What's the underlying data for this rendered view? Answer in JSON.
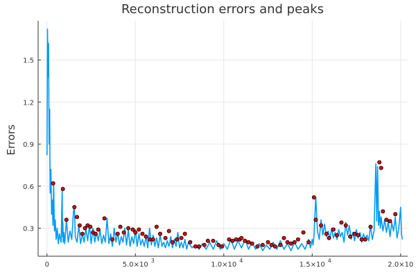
{
  "chart_data": {
    "type": "line",
    "title": "Reconstruction errors and peaks",
    "xlabel": "",
    "ylabel": "Errors",
    "xlim": [
      -500,
      20400
    ],
    "ylim": [
      0.1,
      1.78
    ],
    "grid": true,
    "legend": "none",
    "x_ticks": [
      {
        "value": 0,
        "mantissa": "0",
        "exponent": ""
      },
      {
        "value": 5000,
        "mantissa": "5.0×10",
        "exponent": "3"
      },
      {
        "value": 10000,
        "mantissa": "1.0×10",
        "exponent": "4"
      },
      {
        "value": 15000,
        "mantissa": "1.5×10",
        "exponent": "4"
      },
      {
        "value": 20000,
        "mantissa": "2.0×10",
        "exponent": "4"
      }
    ],
    "y_ticks": [
      "0.3",
      "0.6",
      "0.9",
      "1.2",
      "1.5"
    ],
    "series": [
      {
        "color": "#009af9",
        "x": [
          0,
          30,
          60,
          90,
          120,
          150,
          180,
          220,
          260,
          300,
          340,
          380,
          420,
          470,
          520,
          580,
          640,
          700,
          800,
          860,
          880,
          900,
          920,
          950,
          1000,
          1100,
          1200,
          1300,
          1400,
          1500,
          1550,
          1600,
          1700,
          1800,
          1900,
          2000,
          2100,
          2200,
          2300,
          2400,
          2500,
          2600,
          2700,
          2800,
          2900,
          3000,
          3100,
          3200,
          3300,
          3400,
          3500,
          3600,
          3700,
          3800,
          3900,
          4000,
          4100,
          4200,
          4300,
          4400,
          4500,
          4600,
          4700,
          4800,
          4900,
          5000,
          5100,
          5200,
          5300,
          5400,
          5500,
          5600,
          5700,
          5800,
          5900,
          6000,
          6100,
          6200,
          6300,
          6400,
          6500,
          6600,
          6700,
          6800,
          6900,
          7000,
          7100,
          7200,
          7300,
          7400,
          7500,
          7600,
          7700,
          7800,
          7900,
          8000,
          8200,
          8400,
          8600,
          8800,
          9000,
          9200,
          9400,
          9600,
          9800,
          10000,
          10200,
          10400,
          10600,
          10800,
          11000,
          11200,
          11400,
          11600,
          11800,
          12000,
          12200,
          12400,
          12600,
          12800,
          13000,
          13200,
          13400,
          13600,
          13800,
          14000,
          14200,
          14400,
          14600,
          14800,
          14900,
          15000,
          15050,
          15100,
          15200,
          15300,
          15400,
          15500,
          15600,
          15700,
          15800,
          15900,
          16000,
          16100,
          16200,
          16300,
          16400,
          16500,
          16600,
          16700,
          16800,
          16900,
          17000,
          17100,
          17200,
          17300,
          17400,
          17500,
          17600,
          17700,
          17800,
          17900,
          18000,
          18100,
          18200,
          18300,
          18400,
          18500,
          18600,
          18650,
          18700,
          18750,
          18800,
          18850,
          18900,
          19000,
          19100,
          19200,
          19300,
          19400,
          19500,
          19600,
          19700,
          19800,
          19900,
          20000,
          20050,
          20100
        ],
        "y": [
          0.82,
          1.72,
          1.38,
          1.62,
          0.9,
          1.15,
          0.55,
          0.72,
          0.4,
          0.5,
          0.32,
          0.62,
          0.28,
          0.36,
          0.22,
          0.3,
          0.19,
          0.26,
          0.2,
          0.58,
          0.24,
          0.34,
          0.2,
          0.27,
          0.19,
          0.36,
          0.2,
          0.28,
          0.22,
          0.42,
          0.45,
          0.24,
          0.2,
          0.32,
          0.19,
          0.26,
          0.2,
          0.3,
          0.21,
          0.32,
          0.19,
          0.3,
          0.2,
          0.27,
          0.21,
          0.29,
          0.19,
          0.25,
          0.2,
          0.37,
          0.19,
          0.26,
          0.17,
          0.3,
          0.2,
          0.27,
          0.18,
          0.24,
          0.2,
          0.3,
          0.18,
          0.29,
          0.17,
          0.24,
          0.19,
          0.29,
          0.17,
          0.26,
          0.18,
          0.22,
          0.17,
          0.24,
          0.16,
          0.3,
          0.18,
          0.25,
          0.17,
          0.23,
          0.16,
          0.26,
          0.17,
          0.2,
          0.16,
          0.21,
          0.17,
          0.24,
          0.16,
          0.22,
          0.17,
          0.27,
          0.16,
          0.2,
          0.16,
          0.22,
          0.15,
          0.2,
          0.16,
          0.18,
          0.15,
          0.19,
          0.15,
          0.2,
          0.15,
          0.21,
          0.15,
          0.19,
          0.15,
          0.22,
          0.15,
          0.21,
          0.16,
          0.22,
          0.15,
          0.2,
          0.15,
          0.19,
          0.14,
          0.18,
          0.15,
          0.2,
          0.15,
          0.21,
          0.15,
          0.19,
          0.14,
          0.2,
          0.15,
          0.19,
          0.15,
          0.22,
          0.16,
          0.22,
          0.18,
          0.24,
          0.52,
          0.28,
          0.22,
          0.36,
          0.25,
          0.33,
          0.24,
          0.28,
          0.22,
          0.3,
          0.23,
          0.27,
          0.22,
          0.29,
          0.24,
          0.27,
          0.2,
          0.34,
          0.25,
          0.32,
          0.22,
          0.27,
          0.21,
          0.29,
          0.23,
          0.27,
          0.2,
          0.26,
          0.22,
          0.25,
          0.21,
          0.32,
          0.22,
          0.28,
          0.76,
          0.35,
          0.74,
          0.32,
          0.42,
          0.3,
          0.38,
          0.28,
          0.36,
          0.27,
          0.35,
          0.24,
          0.34,
          0.28,
          0.38,
          0.23,
          0.3,
          0.45,
          0.26,
          0.22
        ]
      },
      {
        "color": "#e00000",
        "marker": "circle",
        "x": [
          350,
          900,
          1100,
          1550,
          1700,
          1850,
          2000,
          2150,
          2300,
          2450,
          2600,
          2750,
          2900,
          3250,
          3700,
          4000,
          4150,
          4350,
          4600,
          4850,
          5000,
          5200,
          5400,
          5600,
          5800,
          6000,
          6200,
          6400,
          6700,
          6900,
          7100,
          7350,
          7600,
          7800,
          8100,
          8400,
          8600,
          8900,
          9100,
          9400,
          9700,
          9900,
          10300,
          10500,
          10700,
          10900,
          11000,
          11200,
          11400,
          11600,
          11900,
          12200,
          12500,
          12700,
          12900,
          13200,
          13400,
          13600,
          13800,
          14000,
          14200,
          14500,
          14800,
          15100,
          15200,
          15500,
          15800,
          15950,
          16200,
          16400,
          16650,
          16900,
          17150,
          17400,
          17600,
          17800,
          18000,
          18300,
          18800,
          18900,
          19000,
          19200,
          19400,
          19700
        ],
        "y": [
          0.62,
          0.58,
          0.36,
          0.45,
          0.38,
          0.32,
          0.26,
          0.3,
          0.32,
          0.31,
          0.27,
          0.26,
          0.29,
          0.37,
          0.22,
          0.26,
          0.31,
          0.27,
          0.3,
          0.29,
          0.27,
          0.29,
          0.26,
          0.24,
          0.22,
          0.22,
          0.31,
          0.26,
          0.23,
          0.28,
          0.2,
          0.22,
          0.23,
          0.26,
          0.2,
          0.17,
          0.17,
          0.18,
          0.21,
          0.21,
          0.18,
          0.17,
          0.22,
          0.21,
          0.22,
          0.22,
          0.23,
          0.21,
          0.2,
          0.19,
          0.17,
          0.18,
          0.2,
          0.18,
          0.17,
          0.18,
          0.23,
          0.2,
          0.19,
          0.2,
          0.22,
          0.27,
          0.2,
          0.52,
          0.36,
          0.32,
          0.26,
          0.23,
          0.29,
          0.25,
          0.34,
          0.32,
          0.24,
          0.26,
          0.25,
          0.22,
          0.22,
          0.31,
          0.77,
          0.73,
          0.42,
          0.36,
          0.35,
          0.4
        ]
      }
    ]
  }
}
